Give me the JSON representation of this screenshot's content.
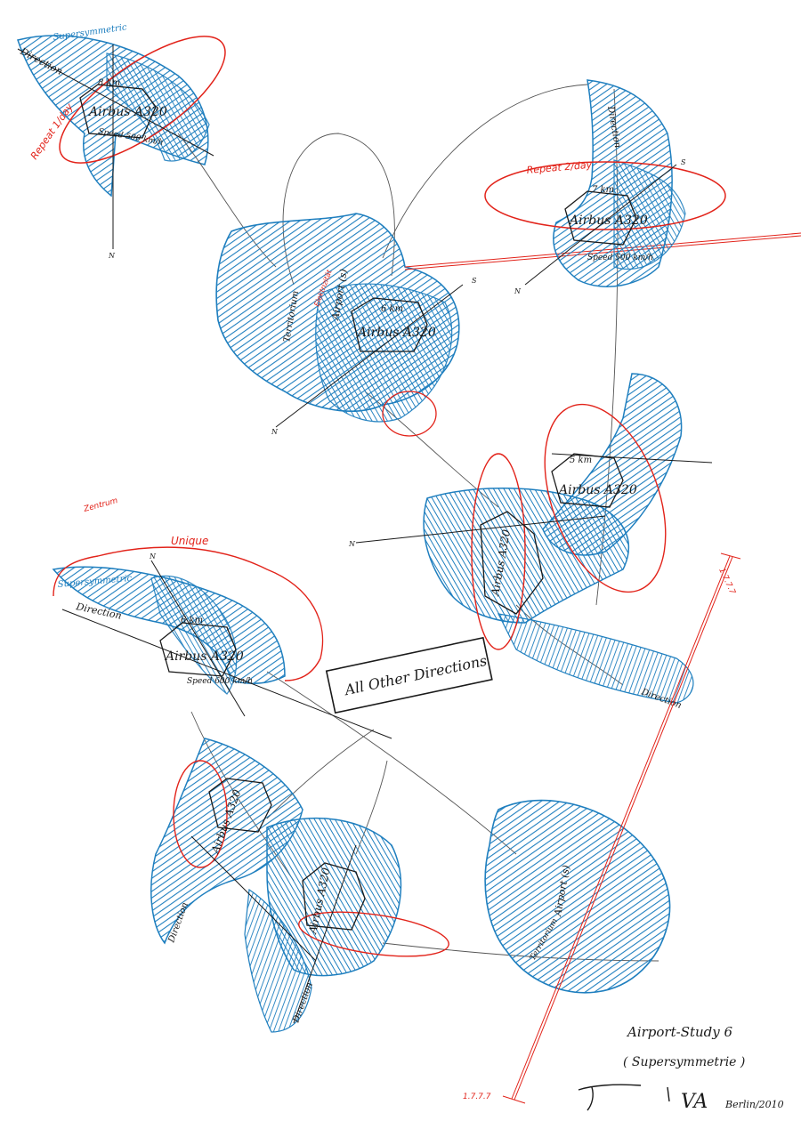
{
  "colors": {
    "blue": "#1f7fbf",
    "red": "#e2231a",
    "ink": "#1a1a1a",
    "paper": "#ffffff"
  },
  "motif_labels": {
    "aircraft": "Airbus A320",
    "repeat_1": "Repeat 1/day",
    "repeat_2": "Repeat 2/day",
    "supersymmetric": "Supersymmetric",
    "direction": "Direction",
    "territorium": "Territorium",
    "airport": "Airport (s)",
    "unique": "Unique",
    "speed": "Speed 500 km/h",
    "speed_600": "Speed 600 km/h",
    "altitude_8": "8 km",
    "altitude_7": "7 km",
    "altitude_6": "6 km",
    "altitude_5": "5 km",
    "north": "N",
    "south": "S",
    "zentrum": "Zentrum",
    "elektrizitat": "Elektrizität"
  },
  "box": {
    "label": "All Other Directions"
  },
  "caption": {
    "title": "Airport-Study 6",
    "subtitle": "( Supersymmetrie )",
    "place_year": "Berlin/2010",
    "signature": "VA"
  },
  "axis_note": "1.7.7.7"
}
